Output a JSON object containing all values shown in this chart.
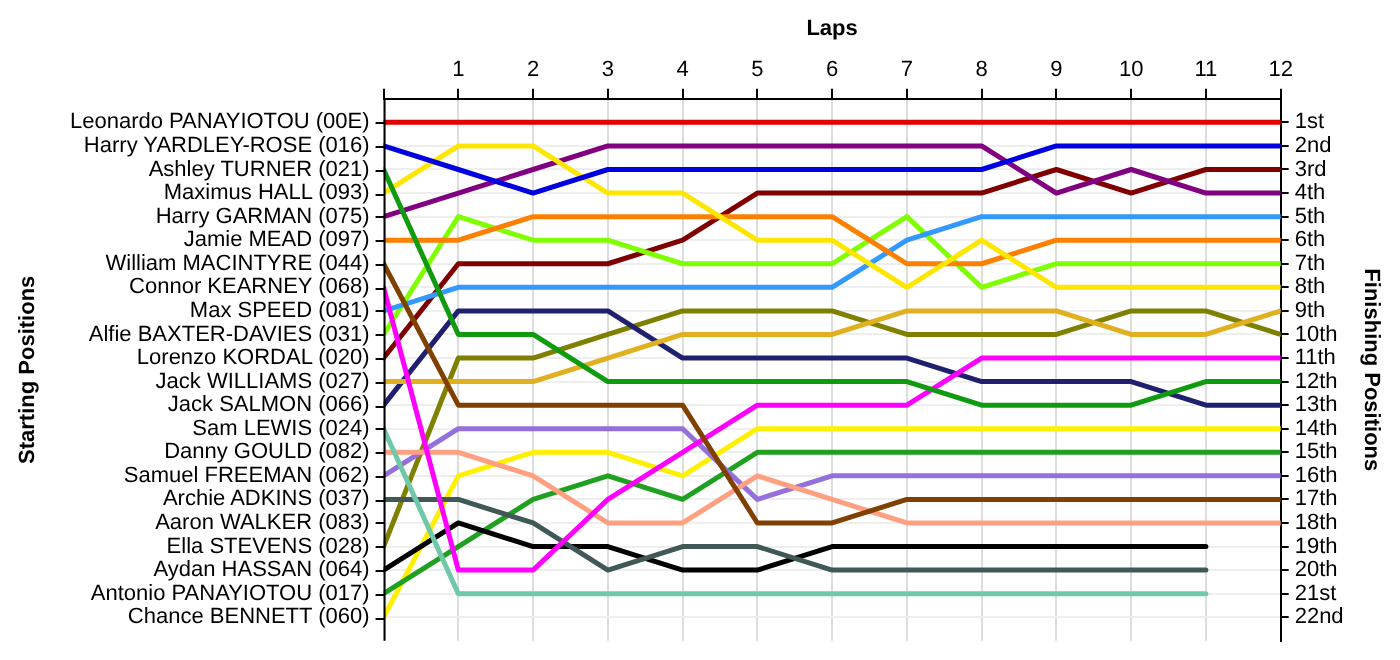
{
  "chart_data": {
    "type": "line",
    "xlabel": "Laps",
    "ylabel": "Finishing Positions",
    "grid": true,
    "marker": "none",
    "x": [
      0,
      1,
      2,
      3,
      4,
      5,
      6,
      7,
      8,
      9,
      10,
      11,
      12
    ],
    "xlim": [
      0,
      12
    ],
    "xticks": [
      {
        "value": 0,
        "label": null
      },
      1,
      2,
      3,
      4,
      5,
      6,
      7,
      8,
      9,
      10,
      11,
      12
    ],
    "ylim": [
      23,
      0
    ],
    "yticks": [
      {
        "value": 1,
        "label": "1st"
      },
      {
        "value": 2,
        "label": "2nd"
      },
      {
        "value": 3,
        "label": "3rd"
      },
      {
        "value": 4,
        "label": "4th"
      },
      {
        "value": 5,
        "label": "5th"
      },
      {
        "value": 6,
        "label": "6th"
      },
      {
        "value": 7,
        "label": "7th"
      },
      {
        "value": 8,
        "label": "8th"
      },
      {
        "value": 9,
        "label": "9th"
      },
      {
        "value": 10,
        "label": "10th"
      },
      {
        "value": 11,
        "label": "11th"
      },
      {
        "value": 12,
        "label": "12th"
      },
      {
        "value": 13,
        "label": "13th"
      },
      {
        "value": 14,
        "label": "14th"
      },
      {
        "value": 15,
        "label": "15th"
      },
      {
        "value": 16,
        "label": "16th"
      },
      {
        "value": 17,
        "label": "17th"
      },
      {
        "value": 18,
        "label": "18th"
      },
      {
        "value": 19,
        "label": "19th"
      },
      {
        "value": 20,
        "label": "20th"
      },
      {
        "value": 21,
        "label": "21st"
      },
      {
        "value": 22,
        "label": "22nd"
      }
    ],
    "annotations": [
      "Starting Positions",
      "Leonardo PANAYIOTOU (00E)",
      "Harry YARDLEY-ROSE (016)",
      "Ashley TURNER (021)",
      "Maximus HALL (093)",
      "Harry GARMAN (075)",
      "Jamie MEAD (097)",
      "William MACINTYRE (044)",
      "Connor KEARNEY (068)",
      "Max SPEED (081)",
      "Alfie BAXTER-DAVIES (031)",
      "Lorenzo KORDAL (020)",
      "Jack WILLIAMS (027)",
      "Jack SALMON (066)",
      "Sam LEWIS (024)",
      "Danny GOULD (082)",
      "Samuel FREEMAN (062)",
      "Archie ADKINS (037)",
      "Aaron WALKER (083)",
      "Ella STEVENS (028)",
      "Aydan HASSAN (064)",
      "Antonio PANAYIOTOU (017)",
      "Chance BENNETT (060)"
    ],
    "series": [
      {
        "color": "#e00000",
        "values": [
          1,
          1,
          1,
          1,
          1,
          1,
          1,
          1,
          1,
          1,
          1,
          1,
          1
        ]
      },
      {
        "color": "#0000e0",
        "values": [
          2,
          3,
          4,
          3,
          3,
          3,
          3,
          3,
          3,
          2,
          2,
          2,
          2
        ]
      },
      {
        "color": "#109a10",
        "values": [
          3,
          10,
          10,
          12,
          12,
          12,
          12,
          12,
          13,
          13,
          13,
          12,
          12
        ]
      },
      {
        "color": "#ffe600",
        "values": [
          4,
          2,
          2,
          4,
          4,
          6,
          6,
          8,
          6,
          8,
          8,
          8,
          8
        ]
      },
      {
        "color": "#800080",
        "values": [
          5,
          4,
          3,
          2,
          2,
          2,
          2,
          2,
          2,
          4,
          3,
          4,
          4
        ]
      },
      {
        "color": "#ff8000",
        "values": [
          6,
          6,
          5,
          5,
          5,
          5,
          5,
          7,
          7,
          6,
          6,
          6,
          6
        ]
      },
      {
        "color": "#804000",
        "values": [
          7,
          13,
          13,
          13,
          13,
          18,
          18,
          17,
          17,
          17,
          17,
          17,
          17
        ]
      },
      {
        "color": "#ff00ff",
        "values": [
          8,
          20,
          20,
          17,
          15,
          13,
          13,
          13,
          11,
          11,
          11,
          11,
          11
        ]
      },
      {
        "color": "#3399ff",
        "values": [
          9,
          8,
          8,
          8,
          8,
          8,
          8,
          6,
          5,
          5,
          5,
          5,
          5
        ]
      },
      {
        "color": "#80ff00",
        "values": [
          10,
          5,
          6,
          6,
          7,
          7,
          7,
          5,
          8,
          7,
          7,
          7,
          7
        ]
      },
      {
        "color": "#800000",
        "values": [
          11,
          7,
          7,
          7,
          6,
          4,
          4,
          4,
          4,
          3,
          4,
          3,
          3
        ]
      },
      {
        "color": "#e0b020",
        "values": [
          12,
          12,
          12,
          11,
          10,
          10,
          10,
          9,
          9,
          9,
          10,
          10,
          9
        ]
      },
      {
        "color": "#202070",
        "values": [
          13,
          9,
          9,
          9,
          11,
          11,
          11,
          11,
          12,
          12,
          12,
          13,
          13
        ]
      },
      {
        "color": "#70c8a8",
        "values": [
          14,
          21,
          21,
          21,
          21,
          21,
          21,
          21,
          21,
          21,
          21,
          21,
          null
        ]
      },
      {
        "color": "#ffa080",
        "values": [
          15,
          15,
          16,
          18,
          18,
          16,
          17,
          18,
          18,
          18,
          18,
          18,
          18
        ]
      },
      {
        "color": "#9370db",
        "values": [
          16,
          14,
          14,
          14,
          14,
          17,
          16,
          16,
          16,
          16,
          16,
          16,
          16
        ]
      },
      {
        "color": "#405858",
        "values": [
          17,
          17,
          18,
          20,
          19,
          19,
          20,
          20,
          20,
          20,
          20,
          20,
          null
        ]
      },
      {
        "color": "#808000",
        "values": [
          19,
          11,
          11,
          10,
          9,
          9,
          9,
          10,
          10,
          10,
          9,
          9,
          10
        ]
      },
      {
        "color": "#000000",
        "values": [
          20,
          18,
          19,
          19,
          20,
          20,
          19,
          19,
          19,
          19,
          19,
          19,
          null
        ]
      },
      {
        "color": "#20a020",
        "values": [
          21,
          19,
          17,
          16,
          17,
          15,
          15,
          15,
          15,
          15,
          15,
          15,
          15
        ]
      },
      {
        "color": "#fff000",
        "values": [
          22,
          16,
          15,
          15,
          16,
          14,
          14,
          14,
          14,
          14,
          14,
          14,
          14
        ]
      }
    ]
  }
}
